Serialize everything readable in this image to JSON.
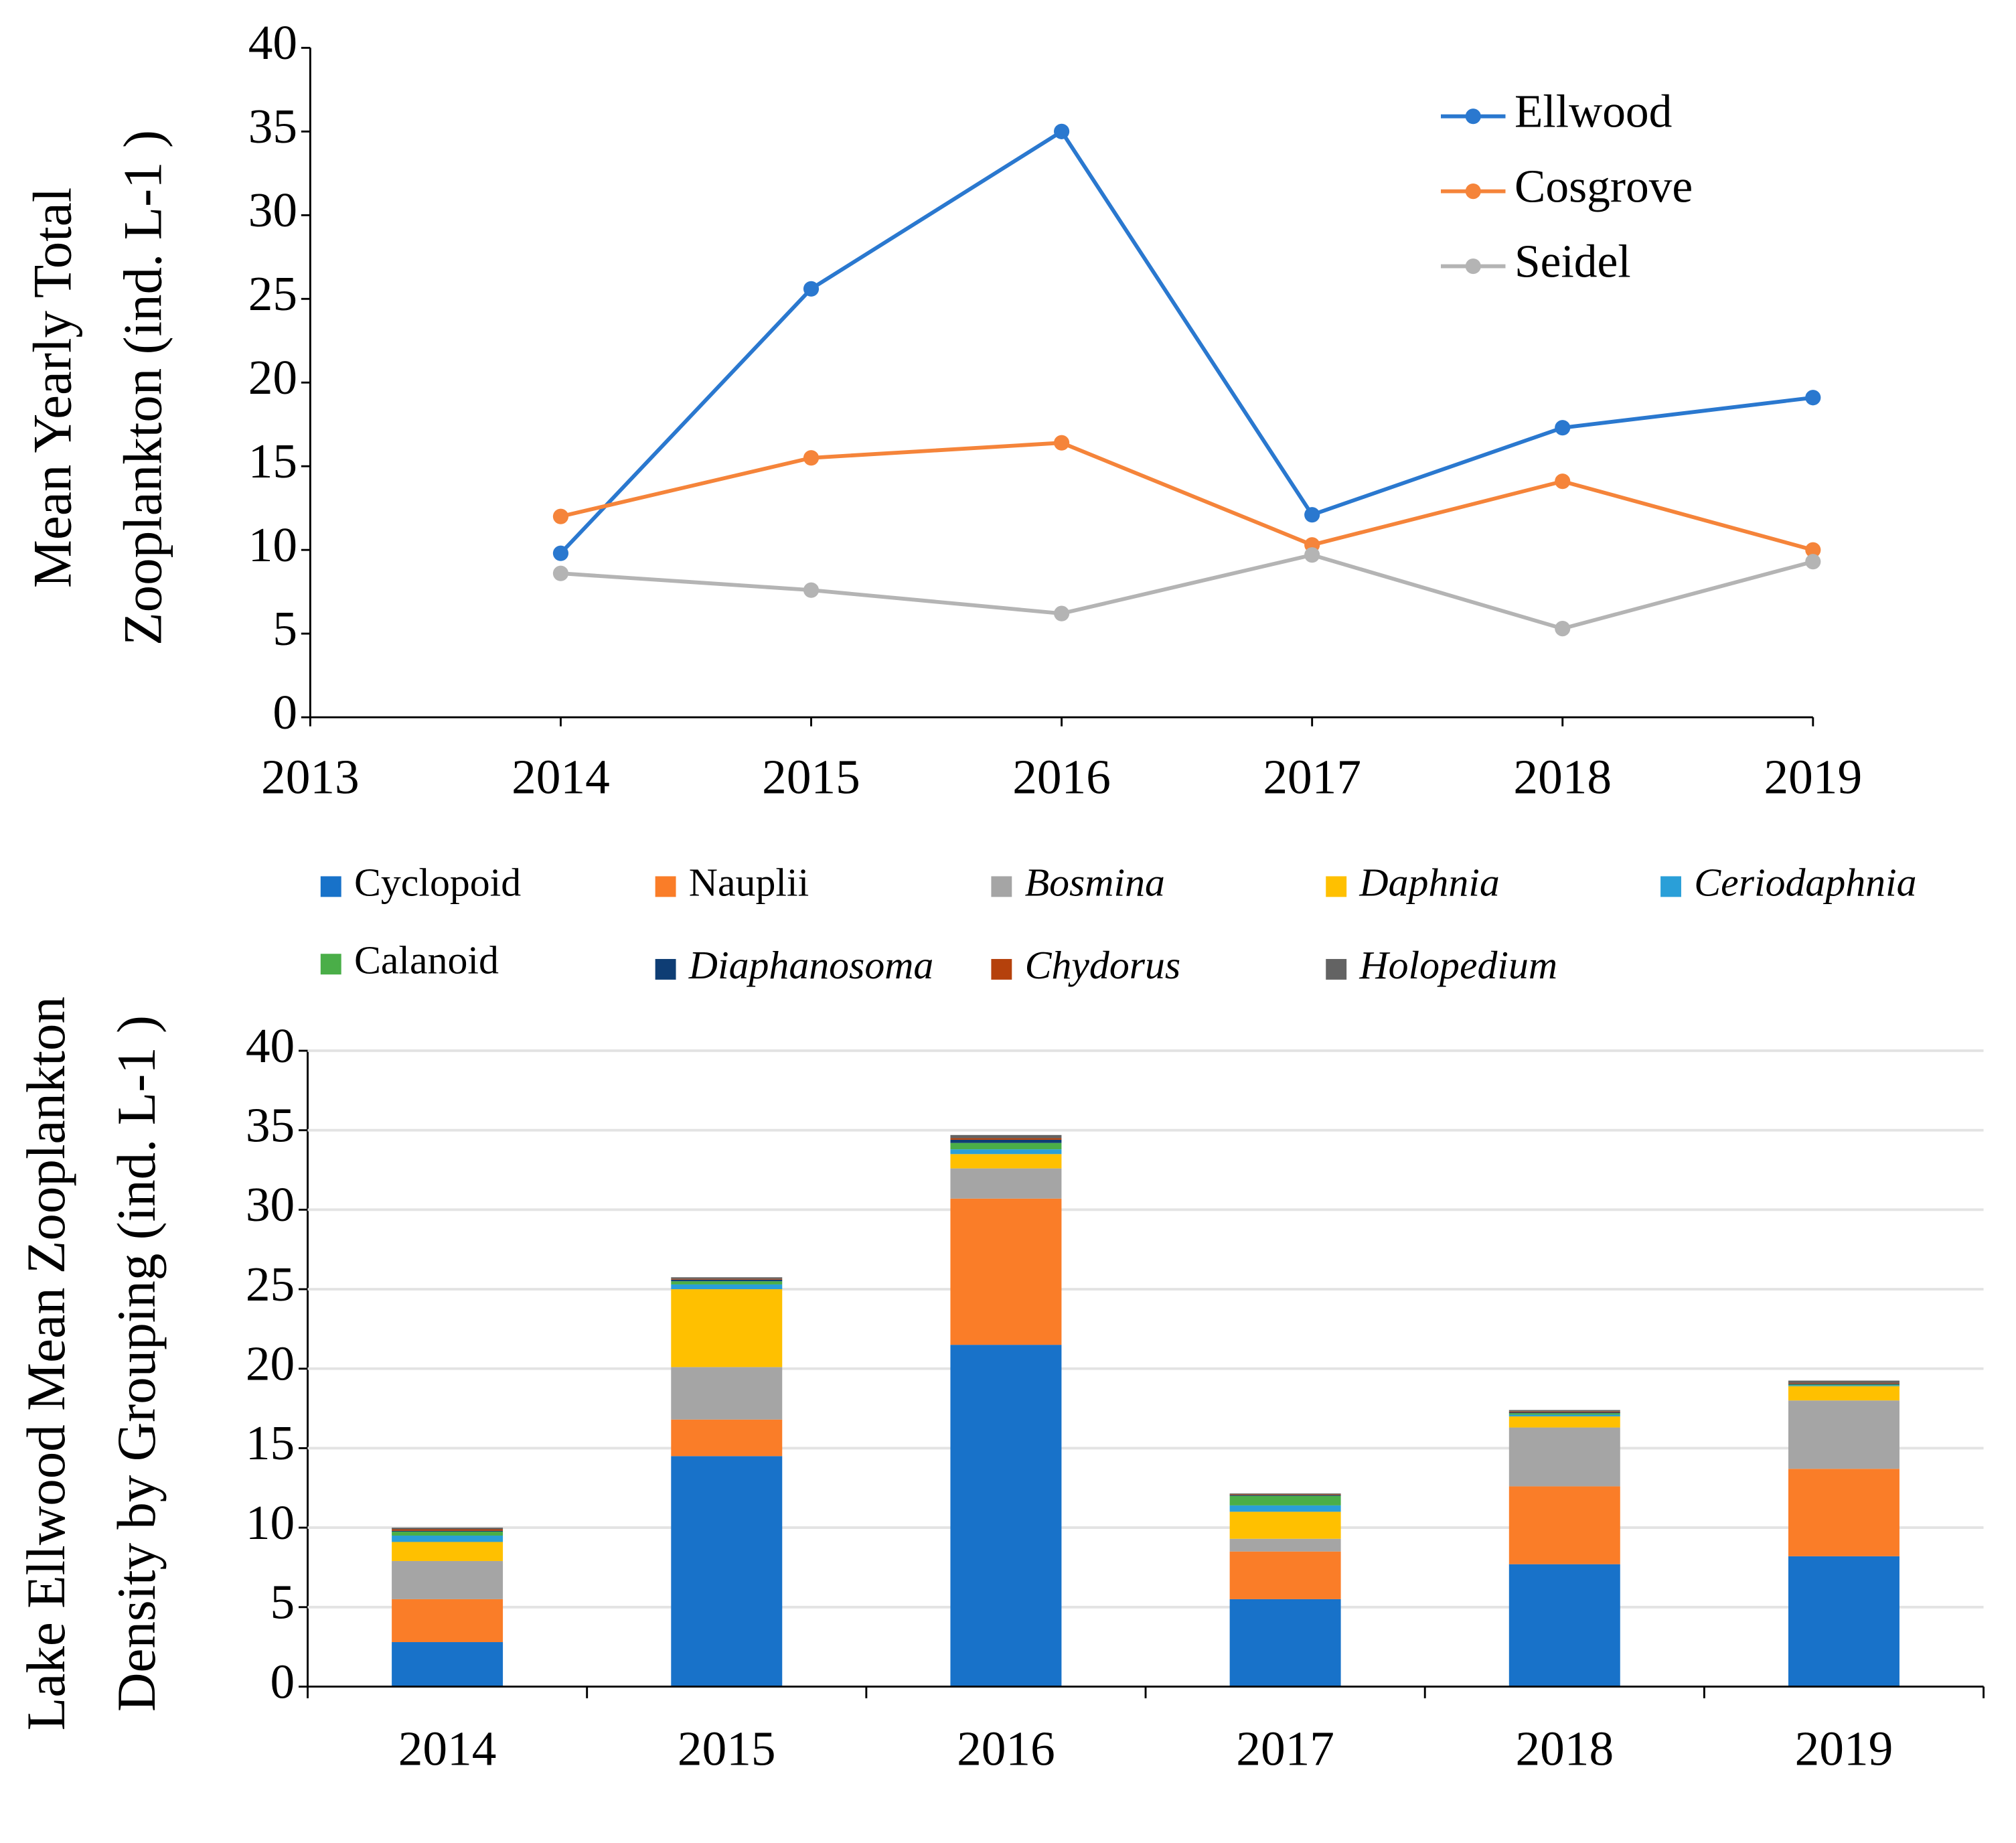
{
  "chart_data": [
    {
      "type": "line",
      "y_label": [
        "Mean Yearly Total",
        "Zooplankton   (ind. L-1 )"
      ],
      "x": [
        2014,
        2015,
        2016,
        2017,
        2018,
        2019
      ],
      "xlim": [
        2013,
        2019
      ],
      "xticks": [
        2013,
        2014,
        2015,
        2016,
        2017,
        2018,
        2019
      ],
      "ylim": [
        0,
        40
      ],
      "yticks": [
        0,
        5,
        10,
        15,
        20,
        25,
        30,
        35,
        40
      ],
      "grid": false,
      "legend": "upper right",
      "series": [
        {
          "name": "Ellwood",
          "color": "#2a78cf",
          "values": [
            9.8,
            25.6,
            35.0,
            12.1,
            17.3,
            19.1
          ]
        },
        {
          "name": "Cosgrove",
          "color": "#f5843a",
          "values": [
            12.0,
            15.5,
            16.4,
            10.3,
            14.1,
            10.0
          ]
        },
        {
          "name": "Seidel",
          "color": "#b4b4b4",
          "values": [
            8.6,
            7.6,
            6.2,
            9.7,
            5.3,
            9.3
          ]
        }
      ]
    },
    {
      "type": "bar",
      "stacked": true,
      "y_label": [
        "Lake Ellwood Mean Zooplankton",
        "Density by Grouping (ind. L-1 )"
      ],
      "categories": [
        "2014",
        "2015",
        "2016",
        "2017",
        "2018",
        "2019"
      ],
      "ylim": [
        0,
        40
      ],
      "yticks": [
        0,
        5,
        10,
        15,
        20,
        25,
        30,
        35,
        40
      ],
      "grid": true,
      "legend": "top",
      "series": [
        {
          "name": "Cyclopoid",
          "color": "#1872c9",
          "italic": false,
          "values": [
            2.8,
            14.5,
            21.5,
            5.5,
            7.7,
            8.2
          ]
        },
        {
          "name": "Nauplii",
          "color": "#fa7d28",
          "italic": false,
          "values": [
            2.7,
            2.3,
            9.2,
            3.0,
            4.9,
            5.5
          ]
        },
        {
          "name": "Bosmina",
          "color": "#a5a5a5",
          "italic": true,
          "values": [
            2.4,
            3.3,
            1.9,
            0.8,
            3.7,
            4.3
          ]
        },
        {
          "name": "Daphnia",
          "color": "#ffc000",
          "italic": true,
          "values": [
            1.2,
            4.9,
            0.9,
            1.7,
            0.7,
            0.9
          ]
        },
        {
          "name": "Ceriodaphnia",
          "color": "#2a9fd8",
          "italic": true,
          "values": [
            0.4,
            0.3,
            0.3,
            0.4,
            0.1,
            0.05
          ]
        },
        {
          "name": "Calanoid",
          "color": "#4aae48",
          "italic": false,
          "values": [
            0.25,
            0.2,
            0.4,
            0.6,
            0.1,
            0.05
          ]
        },
        {
          "name": "Diaphanosoma",
          "color": "#0e3d74",
          "italic": true,
          "values": [
            0.05,
            0.1,
            0.2,
            0.05,
            0.05,
            0.05
          ]
        },
        {
          "name": "Chydorus",
          "color": "#b5410c",
          "italic": true,
          "values": [
            0.1,
            0.05,
            0.1,
            0.05,
            0.05,
            0.05
          ]
        },
        {
          "name": "Holopedium",
          "color": "#636363",
          "italic": true,
          "values": [
            0.1,
            0.1,
            0.2,
            0.05,
            0.1,
            0.15
          ]
        }
      ]
    }
  ]
}
